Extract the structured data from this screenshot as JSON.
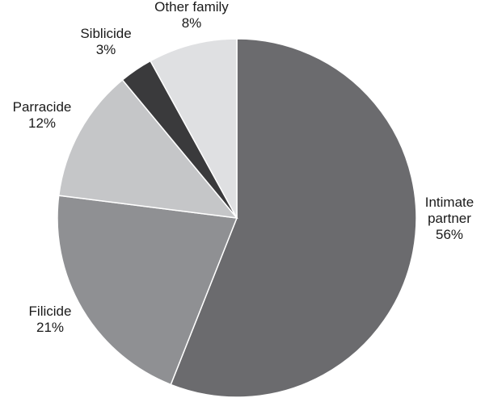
{
  "chart_data": {
    "type": "pie",
    "slices": [
      {
        "label": "Intimate partner",
        "label_lines": [
          "Intimate",
          "partner"
        ],
        "value": 56,
        "value_label": "56%",
        "color": "#6b6b6e"
      },
      {
        "label": "Filicide",
        "label_lines": [
          "Filicide"
        ],
        "value": 21,
        "value_label": "21%",
        "color": "#8f9093"
      },
      {
        "label": "Parracide",
        "label_lines": [
          "Parracide"
        ],
        "value": 12,
        "value_label": "12%",
        "color": "#c5c6c8"
      },
      {
        "label": "Siblicide",
        "label_lines": [
          "Siblicide"
        ],
        "value": 3,
        "value_label": "3%",
        "color": "#3a3a3c"
      },
      {
        "label": "Other family",
        "label_lines": [
          "Other family"
        ],
        "value": 8,
        "value_label": "8%",
        "color": "#dfe0e2"
      }
    ],
    "start_angle": "12 o'clock",
    "direction": "clockwise"
  }
}
